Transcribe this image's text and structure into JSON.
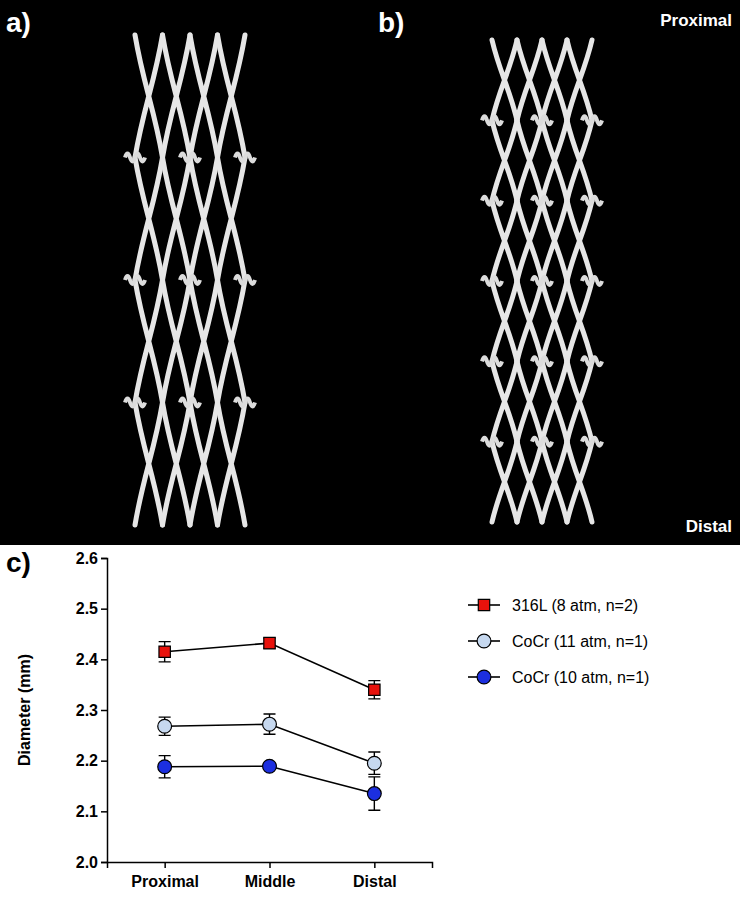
{
  "figure": {
    "panel_labels": [
      "a)",
      "b)",
      "c)"
    ],
    "image_labels": [
      "Proximal",
      "Distal"
    ]
  },
  "chart_data": {
    "type": "line",
    "y_label": "Diameter (mm)",
    "categories": [
      "Proximal",
      "Middle",
      "Distal"
    ],
    "ylim": [
      2.0,
      2.6
    ],
    "yticks": [
      {
        "value": 2.0,
        "label": "2.0"
      },
      2.1,
      2.2,
      2.3,
      2.4,
      2.5,
      2.6
    ],
    "legend": "right",
    "series": [
      {
        "name": "316L (8 atm, n=2)",
        "color": "#e8120c",
        "marker": "square",
        "values": [
          2.415,
          2.432,
          2.34
        ],
        "errors": [
          0.02,
          0.01,
          0.018
        ]
      },
      {
        "name": "CoCr (11 atm, n=1)",
        "color": "#c6d8ef",
        "marker": "circle",
        "values": [
          2.268,
          2.272,
          2.195
        ],
        "errors": [
          0.018,
          0.02,
          0.022
        ]
      },
      {
        "name": "CoCr (10 atm, n=1)",
        "color": "#1c2fe0",
        "marker": "circle",
        "values": [
          2.188,
          2.189,
          2.135
        ],
        "errors": [
          0.022,
          0.005,
          0.033
        ]
      }
    ]
  }
}
